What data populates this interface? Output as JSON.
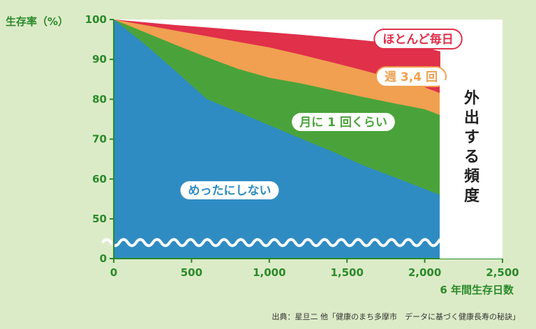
{
  "chart_data": {
    "type": "area",
    "title": "",
    "ylabel": "生存率（%）",
    "xlabel": "6 年間生存日数",
    "xlim": [
      0,
      2500
    ],
    "ylim": [
      0,
      100
    ],
    "y_axis_break": true,
    "xticks": [
      0,
      500,
      1000,
      1500,
      2000,
      2500
    ],
    "xtick_labels": [
      "0",
      "500",
      "1,000",
      "1,500",
      "2,000",
      "2,500"
    ],
    "yticks": [
      0,
      50,
      60,
      70,
      80,
      90,
      100
    ],
    "ytick_labels": [
      "0",
      "50",
      "60",
      "70",
      "80",
      "90",
      "100"
    ],
    "legend_title": "外出する頻度",
    "x": [
      0,
      200,
      400,
      600,
      800,
      1000,
      1200,
      1400,
      1600,
      1800,
      2000,
      2100
    ],
    "series": [
      {
        "name": "ほとんど毎日",
        "color": "#e0304a",
        "values": [
          100,
          99.3,
          98.6,
          98.0,
          97.4,
          96.8,
          96.2,
          95.5,
          94.8,
          94.0,
          93.0,
          92.0
        ]
      },
      {
        "name": "週 3,4 回",
        "color": "#f0a050",
        "values": [
          100,
          98.6,
          97.2,
          95.8,
          94.4,
          93.0,
          91.2,
          89.3,
          87.3,
          85.2,
          83.0,
          81.5
        ]
      },
      {
        "name": "月に 1 回くらい",
        "color": "#4aa33a",
        "values": [
          100,
          96.8,
          93.6,
          90.5,
          87.6,
          85.4,
          84.0,
          82.3,
          80.6,
          79.0,
          77.5,
          76.0
        ]
      },
      {
        "name": "めったにしない",
        "color": "#2f8cc2",
        "values": [
          100,
          93.8,
          87.0,
          80.0,
          76.8,
          73.5,
          70.2,
          67.0,
          63.5,
          60.5,
          57.5,
          56.0
        ]
      }
    ],
    "grid": false,
    "legend_position": "inline"
  },
  "source": "出典：星旦二 他「健康のまち多摩市　データに基づく健康長寿の秘訣」"
}
